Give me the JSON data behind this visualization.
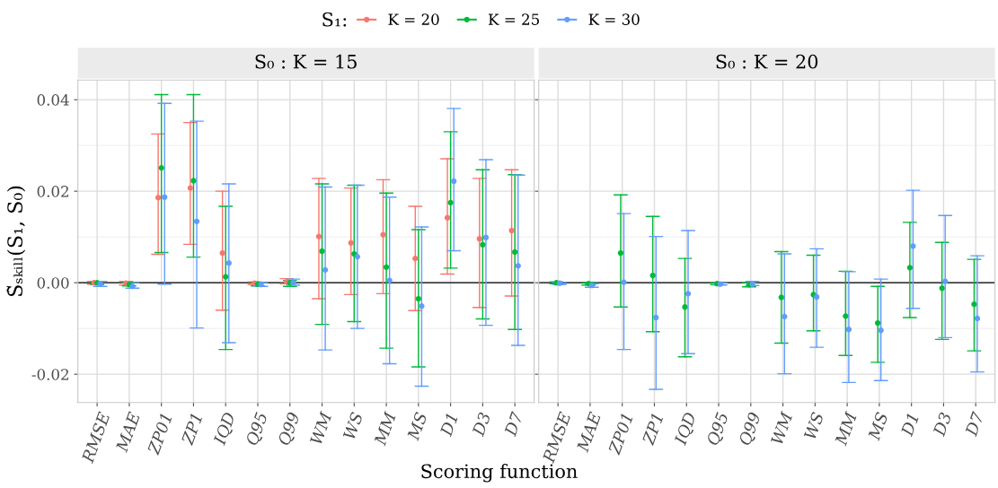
{
  "chart_data": [
    {
      "type": "scatter",
      "title": "S₀ : K = 15",
      "ylabel": "S̃ₛₖᵢₗₗ(S₁, S₀)",
      "xlabel": "Scoring function",
      "legend_title": "S₁:",
      "legend": "top",
      "grid": true,
      "marker": "circle",
      "categories": [
        "RMSE",
        "MAE",
        "ZP01",
        "ZP1",
        "IQD",
        "Q95",
        "Q99",
        "WM",
        "WS",
        "MM",
        "MS",
        "D1",
        "D3",
        "D7"
      ],
      "ylim": [
        -0.0262,
        0.0443
      ],
      "yticks": [
        {
          "value": -0.02,
          "label": "-0.02"
        },
        {
          "value": 0,
          "label": "0.00"
        },
        {
          "value": 0.02,
          "label": "0.02"
        },
        {
          "value": 0.04,
          "label": "0.04"
        }
      ],
      "ref_lines": [
        {
          "axis": "y",
          "value": 0,
          "color": "#000000"
        }
      ],
      "series": [
        {
          "name": "K = 20",
          "color": "#f8766d",
          "values": [
            0.0,
            -0.0001,
            0.0186,
            0.0207,
            0.0065,
            -0.0001,
            0.0002,
            0.0101,
            0.0087,
            0.0105,
            0.0053,
            0.0142,
            0.0096,
            0.0114
          ],
          "errors": [
            [
              -0.0003,
              0.0003
            ],
            [
              -0.0005,
              0.0003
            ],
            [
              0.0062,
              0.0325
            ],
            [
              0.0084,
              0.035
            ],
            [
              -0.006,
              0.02
            ],
            [
              -0.0004,
              0.0002
            ],
            [
              -0.0002,
              0.0009
            ],
            [
              -0.0035,
              0.0228
            ],
            [
              -0.0026,
              0.0207
            ],
            [
              -0.0024,
              0.0225
            ],
            [
              -0.0061,
              0.0167
            ],
            [
              0.0019,
              0.0271
            ],
            [
              -0.0054,
              0.0228
            ],
            [
              -0.0029,
              0.0247
            ]
          ]
        },
        {
          "name": "K = 25",
          "color": "#00ba38",
          "values": [
            0.0,
            -0.0004,
            0.0251,
            0.0223,
            0.0013,
            -0.0003,
            0.0,
            0.0069,
            0.0063,
            0.0034,
            -0.0035,
            0.0175,
            0.0083,
            0.0067
          ],
          "errors": [
            [
              -0.0004,
              0.0002
            ],
            [
              -0.0007,
              0.0
            ],
            [
              0.0066,
              0.0411
            ],
            [
              0.0056,
              0.0411
            ],
            [
              -0.0146,
              0.0167
            ],
            [
              -0.0007,
              0.0
            ],
            [
              -0.0008,
              0.0005
            ],
            [
              -0.0091,
              0.0216
            ],
            [
              -0.0085,
              0.0213
            ],
            [
              -0.0143,
              0.0196
            ],
            [
              -0.0184,
              0.0116
            ],
            [
              0.0032,
              0.033
            ],
            [
              -0.0079,
              0.0247
            ],
            [
              -0.0102,
              0.0236
            ]
          ]
        },
        {
          "name": "K = 30",
          "color": "#619cff",
          "values": [
            -0.0002,
            -0.0008,
            0.0187,
            0.0134,
            0.0043,
            -0.0004,
            0.0,
            0.0028,
            0.0057,
            0.0005,
            -0.0051,
            0.0222,
            0.0099,
            0.0037
          ],
          "errors": [
            [
              -0.0008,
              0.0003
            ],
            [
              -0.0012,
              -0.0001
            ],
            [
              -0.0003,
              0.0392
            ],
            [
              -0.0099,
              0.0353
            ],
            [
              -0.0131,
              0.0216
            ],
            [
              -0.0008,
              0.0
            ],
            [
              -0.0005,
              0.0008
            ],
            [
              -0.0147,
              0.0209
            ],
            [
              -0.01,
              0.0213
            ],
            [
              -0.0177,
              0.0187
            ],
            [
              -0.0226,
              0.0122
            ],
            [
              0.007,
              0.0381
            ],
            [
              -0.0093,
              0.0269
            ],
            [
              -0.0137,
              0.0235
            ]
          ]
        }
      ]
    },
    {
      "type": "scatter",
      "title": "S₀ : K = 20",
      "grid": true,
      "marker": "circle",
      "tick_labels": "x",
      "categories": [
        "RMSE",
        "MAE",
        "ZP01",
        "ZP1",
        "IQD",
        "Q95",
        "Q99",
        "WM",
        "WS",
        "MM",
        "MS",
        "D1",
        "D3",
        "D7"
      ],
      "ylim": [
        -0.0262,
        0.0443
      ],
      "yticks": [
        {
          "value": -0.02,
          "label": null
        },
        {
          "value": 0,
          "label": null
        },
        {
          "value": 0.02,
          "label": null
        },
        {
          "value": 0.04,
          "label": null
        }
      ],
      "ref_lines": [
        {
          "axis": "y",
          "value": 0,
          "color": "#000000"
        }
      ],
      "series": [
        {
          "name": "K = 25",
          "color": "#00ba38",
          "values": [
            0.0,
            -0.0002,
            0.0065,
            0.0016,
            -0.0053,
            -0.0002,
            -0.0004,
            -0.0032,
            -0.0026,
            -0.0073,
            -0.0088,
            0.0033,
            -0.0012,
            -0.0047
          ],
          "errors": [
            [
              -0.0002,
              0.0002
            ],
            [
              -0.0005,
              0.0001
            ],
            [
              -0.0053,
              0.0192
            ],
            [
              -0.0107,
              0.0145
            ],
            [
              -0.0162,
              0.0053
            ],
            [
              -0.0004,
              0.0
            ],
            [
              -0.0009,
              0.0
            ],
            [
              -0.0132,
              0.0068
            ],
            [
              -0.0105,
              0.006
            ],
            [
              -0.0159,
              0.0025
            ],
            [
              -0.0174,
              -0.0008
            ],
            [
              -0.0076,
              0.0132
            ],
            [
              -0.0124,
              0.0088
            ],
            [
              -0.0149,
              0.0051
            ]
          ]
        },
        {
          "name": "K = 30",
          "color": "#619cff",
          "values": [
            -0.0001,
            -0.0006,
            0.0001,
            -0.0076,
            -0.0024,
            -0.0003,
            -0.0003,
            -0.0074,
            -0.0031,
            -0.0102,
            -0.0104,
            0.008,
            0.0003,
            -0.0078
          ],
          "errors": [
            [
              -0.0004,
              0.0001
            ],
            [
              -0.001,
              -0.0002
            ],
            [
              -0.0146,
              0.0151
            ],
            [
              -0.0233,
              0.0101
            ],
            [
              -0.0155,
              0.0114
            ],
            [
              -0.0005,
              -0.0001
            ],
            [
              -0.0006,
              0.0003
            ],
            [
              -0.0199,
              0.0063
            ],
            [
              -0.0141,
              0.0074
            ],
            [
              -0.0218,
              0.0024
            ],
            [
              -0.0214,
              0.0008
            ],
            [
              -0.0056,
              0.0202
            ],
            [
              -0.012,
              0.0147
            ],
            [
              -0.0195,
              0.0059
            ]
          ]
        }
      ]
    }
  ]
}
